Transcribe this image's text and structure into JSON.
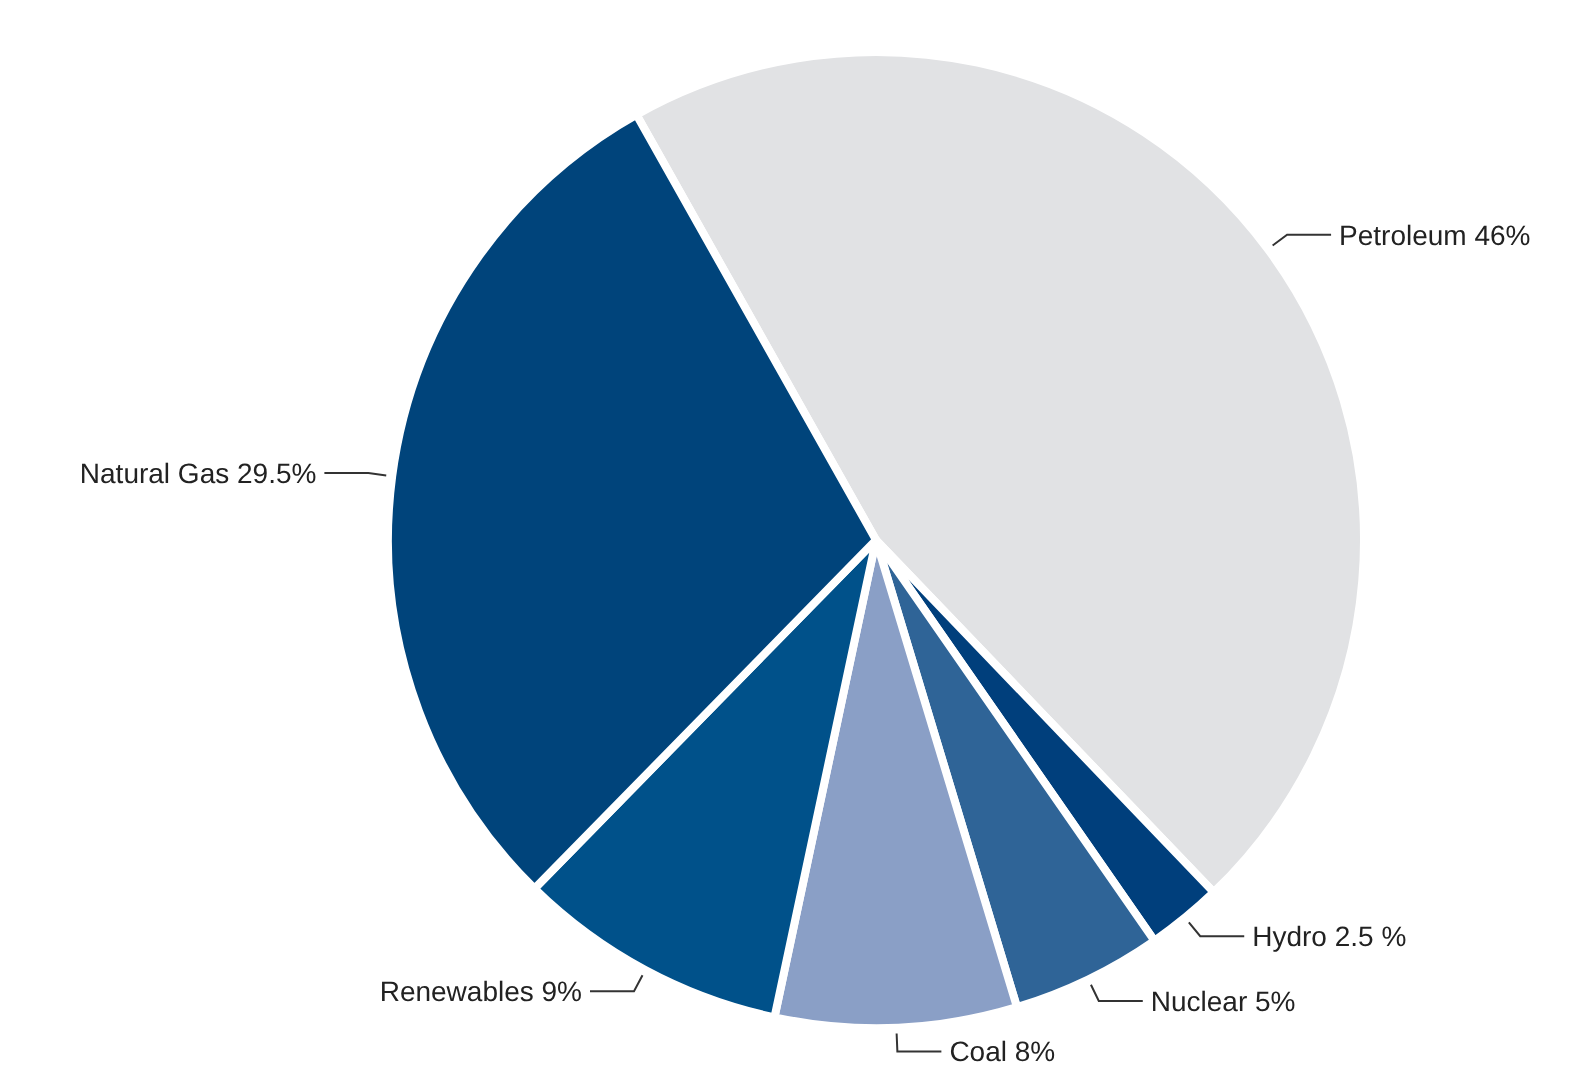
{
  "chart_data": {
    "type": "pie",
    "categories": [
      "Petroleum",
      "Hydro",
      "Nuclear",
      "Coal",
      "Renewables",
      "Natural Gas"
    ],
    "values": [
      46,
      2.5,
      5,
      8,
      9,
      29.5
    ],
    "value_labels": [
      "46%",
      "2.5 %",
      "5%",
      "8%",
      "9%",
      "29.5%"
    ],
    "colors": [
      "#e1e2e4",
      "#003f7c",
      "#2f6497",
      "#8a9fc6",
      "#00518a",
      "#00447b"
    ]
  }
}
